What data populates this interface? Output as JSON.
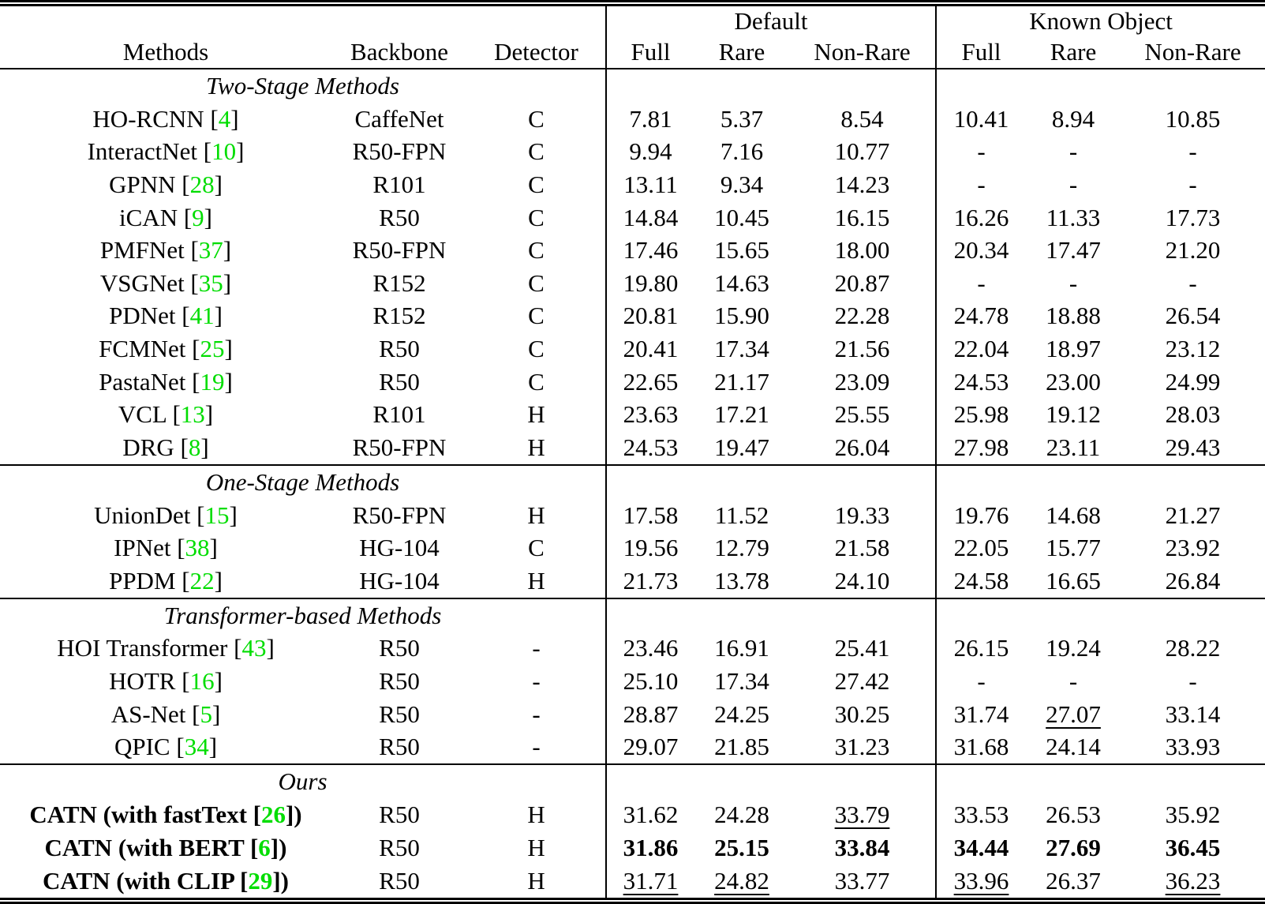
{
  "citation_color": "#00dd00",
  "header": {
    "group_default": "Default",
    "group_known": "Known Object",
    "methods": "Methods",
    "backbone": "Backbone",
    "detector": "Detector",
    "full": "Full",
    "rare": "Rare",
    "nonrare": "Non-Rare"
  },
  "sections": [
    {
      "title": "Two-Stage Methods",
      "rows": [
        {
          "pre": "HO-RCNN [",
          "cite": "4",
          "post": "]",
          "bold": false,
          "backbone": "CaffeNet",
          "detector": "C",
          "vals": [
            {
              "v": "7.81"
            },
            {
              "v": "5.37"
            },
            {
              "v": "8.54"
            },
            {
              "v": "10.41"
            },
            {
              "v": "8.94"
            },
            {
              "v": "10.85"
            }
          ]
        },
        {
          "pre": "InteractNet [",
          "cite": "10",
          "post": "]",
          "bold": false,
          "backbone": "R50-FPN",
          "detector": "C",
          "vals": [
            {
              "v": "9.94"
            },
            {
              "v": "7.16"
            },
            {
              "v": "10.77"
            },
            {
              "v": "-"
            },
            {
              "v": "-"
            },
            {
              "v": "-"
            }
          ]
        },
        {
          "pre": "GPNN [",
          "cite": "28",
          "post": "]",
          "bold": false,
          "backbone": "R101",
          "detector": "C",
          "vals": [
            {
              "v": "13.11"
            },
            {
              "v": "9.34"
            },
            {
              "v": "14.23"
            },
            {
              "v": "-"
            },
            {
              "v": "-"
            },
            {
              "v": "-"
            }
          ]
        },
        {
          "pre": "iCAN [",
          "cite": "9",
          "post": "]",
          "bold": false,
          "backbone": "R50",
          "detector": "C",
          "vals": [
            {
              "v": "14.84"
            },
            {
              "v": "10.45"
            },
            {
              "v": "16.15"
            },
            {
              "v": "16.26"
            },
            {
              "v": "11.33"
            },
            {
              "v": "17.73"
            }
          ]
        },
        {
          "pre": "PMFNet [",
          "cite": "37",
          "post": "]",
          "bold": false,
          "backbone": "R50-FPN",
          "detector": "C",
          "vals": [
            {
              "v": "17.46"
            },
            {
              "v": "15.65"
            },
            {
              "v": "18.00"
            },
            {
              "v": "20.34"
            },
            {
              "v": "17.47"
            },
            {
              "v": "21.20"
            }
          ]
        },
        {
          "pre": "VSGNet [",
          "cite": "35",
          "post": "]",
          "bold": false,
          "backbone": "R152",
          "detector": "C",
          "vals": [
            {
              "v": "19.80"
            },
            {
              "v": "14.63"
            },
            {
              "v": "20.87"
            },
            {
              "v": "-"
            },
            {
              "v": "-"
            },
            {
              "v": "-"
            }
          ]
        },
        {
          "pre": "PDNet [",
          "cite": "41",
          "post": "]",
          "bold": false,
          "backbone": "R152",
          "detector": "C",
          "vals": [
            {
              "v": "20.81"
            },
            {
              "v": "15.90"
            },
            {
              "v": "22.28"
            },
            {
              "v": "24.78"
            },
            {
              "v": "18.88"
            },
            {
              "v": "26.54"
            }
          ]
        },
        {
          "pre": "FCMNet [",
          "cite": "25",
          "post": "]",
          "bold": false,
          "backbone": "R50",
          "detector": "C",
          "vals": [
            {
              "v": "20.41"
            },
            {
              "v": "17.34"
            },
            {
              "v": "21.56"
            },
            {
              "v": "22.04"
            },
            {
              "v": "18.97"
            },
            {
              "v": "23.12"
            }
          ]
        },
        {
          "pre": "PastaNet [",
          "cite": "19",
          "post": "]",
          "bold": false,
          "backbone": "R50",
          "detector": "C",
          "vals": [
            {
              "v": "22.65"
            },
            {
              "v": "21.17"
            },
            {
              "v": "23.09"
            },
            {
              "v": "24.53"
            },
            {
              "v": "23.00"
            },
            {
              "v": "24.99"
            }
          ]
        },
        {
          "pre": "VCL [",
          "cite": "13",
          "post": "]",
          "bold": false,
          "backbone": "R101",
          "detector": "H",
          "vals": [
            {
              "v": "23.63"
            },
            {
              "v": "17.21"
            },
            {
              "v": "25.55"
            },
            {
              "v": "25.98"
            },
            {
              "v": "19.12"
            },
            {
              "v": "28.03"
            }
          ]
        },
        {
          "pre": "DRG [",
          "cite": "8",
          "post": "]",
          "bold": false,
          "backbone": "R50-FPN",
          "detector": "H",
          "vals": [
            {
              "v": "24.53"
            },
            {
              "v": "19.47"
            },
            {
              "v": "26.04"
            },
            {
              "v": "27.98"
            },
            {
              "v": "23.11"
            },
            {
              "v": "29.43"
            }
          ]
        }
      ]
    },
    {
      "title": "One-Stage Methods",
      "rows": [
        {
          "pre": "UnionDet [",
          "cite": "15",
          "post": "]",
          "bold": false,
          "backbone": "R50-FPN",
          "detector": "H",
          "vals": [
            {
              "v": "17.58"
            },
            {
              "v": "11.52"
            },
            {
              "v": "19.33"
            },
            {
              "v": "19.76"
            },
            {
              "v": "14.68"
            },
            {
              "v": "21.27"
            }
          ]
        },
        {
          "pre": "IPNet [",
          "cite": "38",
          "post": "]",
          "bold": false,
          "backbone": "HG-104",
          "detector": "C",
          "vals": [
            {
              "v": "19.56"
            },
            {
              "v": "12.79"
            },
            {
              "v": "21.58"
            },
            {
              "v": "22.05"
            },
            {
              "v": "15.77"
            },
            {
              "v": "23.92"
            }
          ]
        },
        {
          "pre": "PPDM [",
          "cite": "22",
          "post": "]",
          "bold": false,
          "backbone": "HG-104",
          "detector": "H",
          "vals": [
            {
              "v": "21.73"
            },
            {
              "v": "13.78"
            },
            {
              "v": "24.10"
            },
            {
              "v": "24.58"
            },
            {
              "v": "16.65"
            },
            {
              "v": "26.84"
            }
          ]
        }
      ]
    },
    {
      "title": "Transformer-based Methods",
      "rows": [
        {
          "pre": "HOI Transformer [",
          "cite": "43",
          "post": "]",
          "bold": false,
          "backbone": "R50",
          "detector": "-",
          "vals": [
            {
              "v": "23.46"
            },
            {
              "v": "16.91"
            },
            {
              "v": "25.41"
            },
            {
              "v": "26.15"
            },
            {
              "v": "19.24"
            },
            {
              "v": "28.22"
            }
          ]
        },
        {
          "pre": "HOTR [",
          "cite": "16",
          "post": "]",
          "bold": false,
          "backbone": "R50",
          "detector": "-",
          "vals": [
            {
              "v": "25.10"
            },
            {
              "v": "17.34"
            },
            {
              "v": "27.42"
            },
            {
              "v": "-"
            },
            {
              "v": "-"
            },
            {
              "v": "-"
            }
          ]
        },
        {
          "pre": "AS-Net [",
          "cite": "5",
          "post": "]",
          "bold": false,
          "backbone": "R50",
          "detector": "-",
          "vals": [
            {
              "v": "28.87"
            },
            {
              "v": "24.25"
            },
            {
              "v": "30.25"
            },
            {
              "v": "31.74"
            },
            {
              "v": "27.07",
              "s": "u"
            },
            {
              "v": "33.14"
            }
          ]
        },
        {
          "pre": "QPIC [",
          "cite": "34",
          "post": "]",
          "bold": false,
          "backbone": "R50",
          "detector": "-",
          "vals": [
            {
              "v": "29.07"
            },
            {
              "v": "21.85"
            },
            {
              "v": "31.23"
            },
            {
              "v": "31.68"
            },
            {
              "v": "24.14"
            },
            {
              "v": "33.93"
            }
          ]
        }
      ]
    },
    {
      "title": "Ours",
      "rows": [
        {
          "pre": "CATN (with fastText [",
          "cite": "26",
          "post": "])",
          "bold": true,
          "backbone": "R50",
          "detector": "H",
          "vals": [
            {
              "v": "31.62"
            },
            {
              "v": "24.28"
            },
            {
              "v": "33.79",
              "s": "u"
            },
            {
              "v": "33.53"
            },
            {
              "v": "26.53"
            },
            {
              "v": "35.92"
            }
          ]
        },
        {
          "pre": "CATN (with BERT [",
          "cite": "6",
          "post": "])",
          "bold": true,
          "backbone": "R50",
          "detector": "H",
          "vals": [
            {
              "v": "31.86",
              "s": "b"
            },
            {
              "v": "25.15",
              "s": "b"
            },
            {
              "v": "33.84",
              "s": "b"
            },
            {
              "v": "34.44",
              "s": "b"
            },
            {
              "v": "27.69",
              "s": "b"
            },
            {
              "v": "36.45",
              "s": "b"
            }
          ]
        },
        {
          "pre": "CATN (with CLIP [",
          "cite": "29",
          "post": "])",
          "bold": true,
          "backbone": "R50",
          "detector": "H",
          "vals": [
            {
              "v": "31.71",
              "s": "u"
            },
            {
              "v": "24.82",
              "s": "u"
            },
            {
              "v": "33.77"
            },
            {
              "v": "33.96",
              "s": "u"
            },
            {
              "v": "26.37"
            },
            {
              "v": "36.23",
              "s": "u"
            }
          ]
        }
      ]
    }
  ]
}
